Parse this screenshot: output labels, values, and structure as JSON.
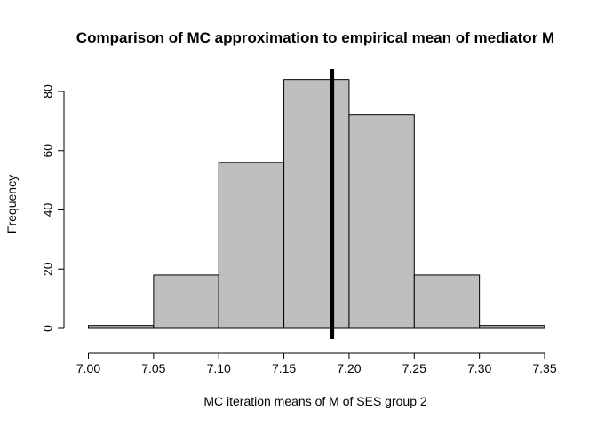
{
  "chart_data": {
    "type": "bar",
    "subtype": "histogram",
    "title": "Comparison of MC approximation to empirical mean of mediator M",
    "xlabel": "MC iteration means of M of SES group 2",
    "ylabel": "Frequency",
    "bin_edges": [
      7.0,
      7.05,
      7.1,
      7.15,
      7.2,
      7.25,
      7.3,
      7.35
    ],
    "values": [
      1,
      18,
      56,
      84,
      72,
      18,
      1
    ],
    "xlim": [
      7.0,
      7.35
    ],
    "ylim": [
      0,
      84
    ],
    "x_ticks": [
      "7.00",
      "7.05",
      "7.10",
      "7.15",
      "7.20",
      "7.25",
      "7.30",
      "7.35"
    ],
    "y_ticks": [
      "0",
      "20",
      "40",
      "60",
      "80"
    ],
    "vertical_line": {
      "x": 7.187,
      "color": "#000000"
    },
    "bar_color": "#bebebe",
    "grid": false
  }
}
